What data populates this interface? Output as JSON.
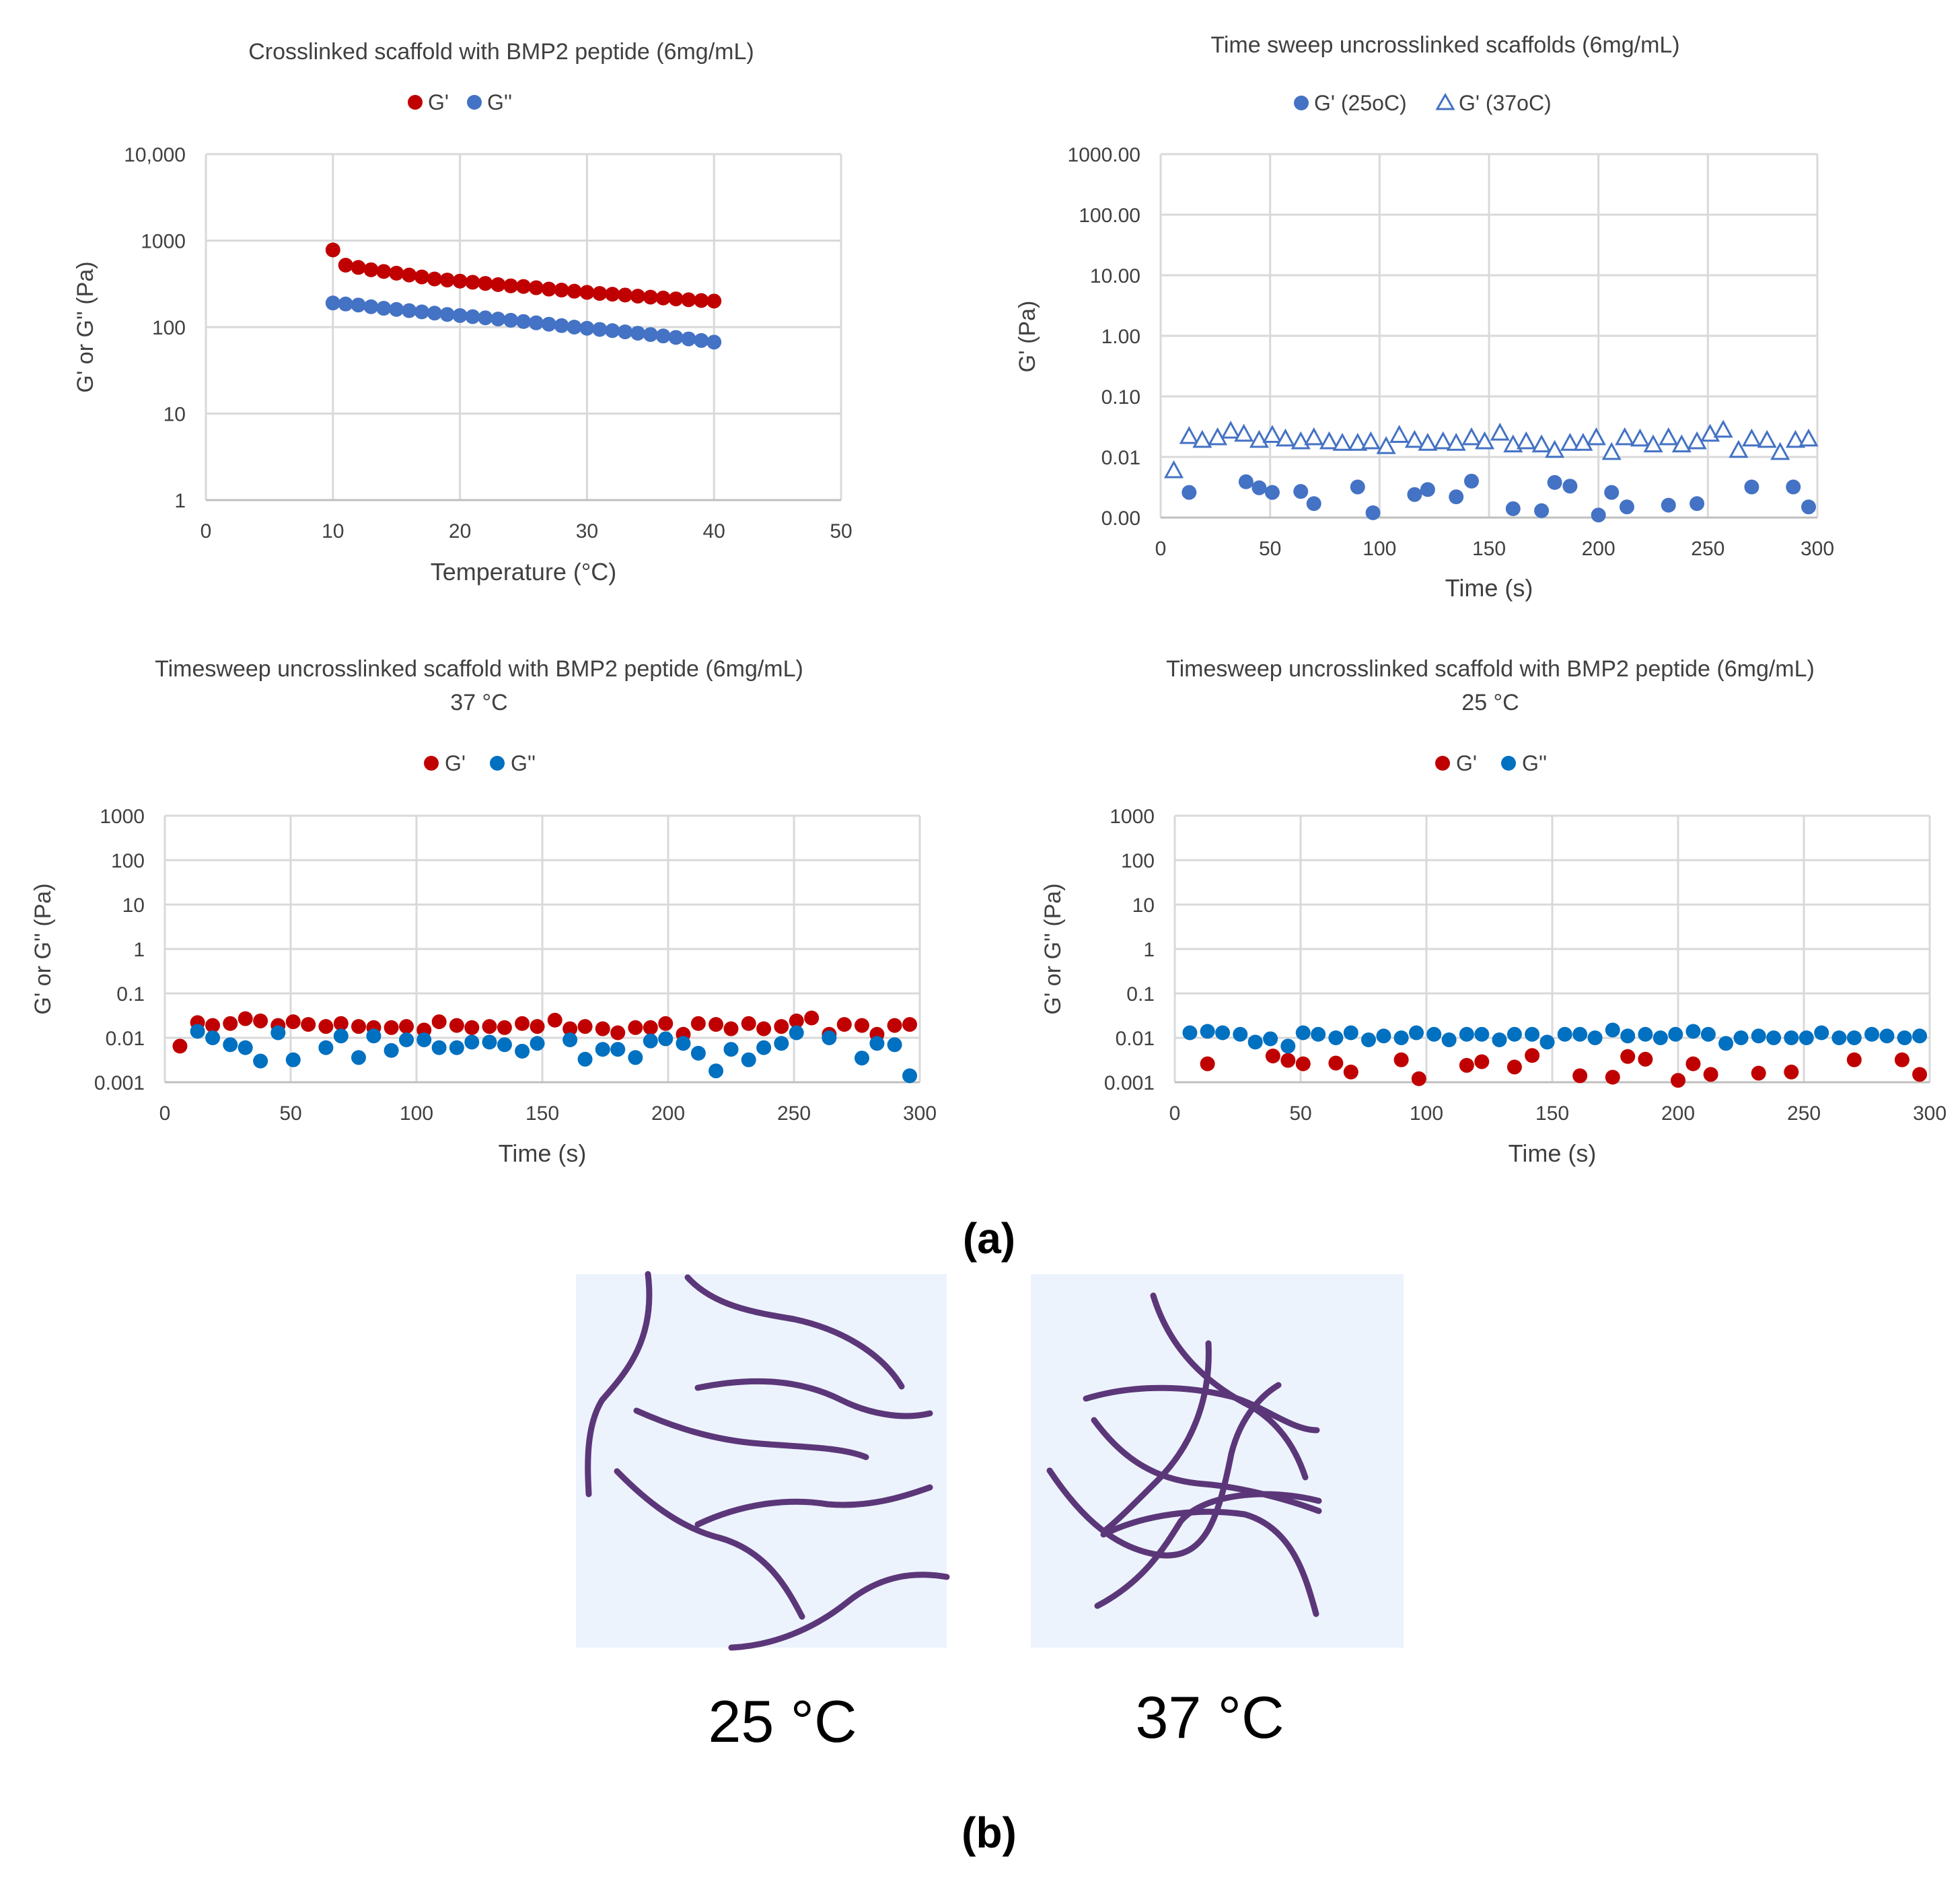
{
  "chart_data": [
    {
      "type": "scatter",
      "title": "Crosslinked scaffold with BMP2 peptide (6mg/mL)",
      "xlabel": "Temperature (°C)",
      "ylabel": "G' or G'' (Pa)",
      "xlim": [
        0,
        50
      ],
      "ylim": [
        1,
        10000
      ],
      "yscale": "log",
      "xticks": [
        0,
        10,
        20,
        30,
        40,
        50
      ],
      "xtick_labels": [
        "0",
        "10",
        "20",
        "30",
        "40",
        "50"
      ],
      "yticks": [
        1,
        10,
        100,
        1000,
        10000
      ],
      "ytick_labels": [
        "1",
        "10",
        "100",
        "1000",
        "10,000"
      ],
      "grid": true,
      "legend_position": "top-center",
      "series": [
        {
          "name": "G'",
          "marker": "filled-circle",
          "color": "#c00000",
          "x": [
            10,
            11,
            12,
            13,
            14,
            15,
            16,
            17,
            18,
            19,
            20,
            21,
            22,
            23,
            24,
            25,
            26,
            27,
            28,
            29,
            30,
            31,
            32,
            33,
            34,
            35,
            36,
            37,
            38,
            39,
            40
          ],
          "y": [
            780,
            520,
            490,
            460,
            440,
            420,
            400,
            380,
            360,
            350,
            340,
            330,
            320,
            310,
            300,
            295,
            285,
            275,
            268,
            260,
            252,
            245,
            240,
            235,
            228,
            222,
            217,
            212,
            207,
            203,
            200
          ]
        },
        {
          "name": "G''",
          "marker": "filled-circle",
          "color": "#4472c4",
          "x": [
            10,
            11,
            12,
            13,
            14,
            15,
            16,
            17,
            18,
            19,
            20,
            21,
            22,
            23,
            24,
            25,
            26,
            27,
            28,
            29,
            30,
            31,
            32,
            33,
            34,
            35,
            36,
            37,
            38,
            39,
            40
          ],
          "y": [
            190,
            185,
            180,
            172,
            165,
            160,
            155,
            150,
            145,
            140,
            136,
            132,
            128,
            124,
            120,
            116,
            112,
            108,
            104,
            100,
            97,
            94,
            91,
            88,
            85,
            82,
            79,
            76,
            73,
            70,
            67
          ]
        }
      ]
    },
    {
      "type": "scatter",
      "title": "Time sweep uncrosslinked scaffolds (6mg/mL)",
      "xlabel": "Time (s)",
      "ylabel": "G' (Pa)",
      "xlim": [
        0,
        300
      ],
      "ylim": [
        0.001,
        1000
      ],
      "yscale": "log",
      "xticks": [
        0,
        50,
        100,
        150,
        200,
        250,
        300
      ],
      "xtick_labels": [
        "0",
        "50",
        "100",
        "150",
        "200",
        "250",
        "300"
      ],
      "yticks": [
        0.001,
        0.01,
        0.1,
        1,
        10,
        100,
        1000
      ],
      "ytick_labels": [
        "0.00",
        "0.01",
        "0.10",
        "1.00",
        "10.00",
        "100.00",
        "1000.00"
      ],
      "grid": true,
      "legend_position": "top-center",
      "series": [
        {
          "name": "G' (25oC)",
          "marker": "filled-circle",
          "color": "#4472c4",
          "x": [
            13,
            39,
            45,
            51,
            64,
            70,
            90,
            97,
            116,
            122,
            135,
            142,
            161,
            174,
            180,
            187,
            200,
            206,
            213,
            232,
            245,
            270,
            289,
            296
          ],
          "y": [
            0.0026,
            0.0039,
            0.0031,
            0.0026,
            0.0027,
            0.0017,
            0.0032,
            0.0012,
            0.0024,
            0.0029,
            0.0022,
            0.004,
            0.0014,
            0.0013,
            0.0038,
            0.0033,
            0.0011,
            0.0026,
            0.0015,
            0.0016,
            0.0017,
            0.0032,
            0.0032,
            0.0015
          ]
        },
        {
          "name": "G' (37oC)",
          "marker": "open-triangle",
          "color": "#4472c4",
          "x": [
            6,
            13,
            19,
            26,
            32,
            38,
            45,
            51,
            57,
            64,
            70,
            77,
            83,
            90,
            96,
            103,
            109,
            116,
            122,
            129,
            135,
            142,
            148,
            155,
            161,
            167,
            174,
            180,
            187,
            193,
            199,
            206,
            212,
            219,
            225,
            232,
            238,
            245,
            251,
            257,
            264,
            270,
            277,
            283,
            290,
            296
          ],
          "y": [
            0.006,
            0.022,
            0.019,
            0.021,
            0.027,
            0.024,
            0.019,
            0.023,
            0.02,
            0.018,
            0.021,
            0.018,
            0.017,
            0.017,
            0.018,
            0.015,
            0.023,
            0.019,
            0.017,
            0.018,
            0.017,
            0.021,
            0.018,
            0.025,
            0.016,
            0.018,
            0.016,
            0.013,
            0.017,
            0.017,
            0.021,
            0.012,
            0.021,
            0.02,
            0.016,
            0.021,
            0.016,
            0.018,
            0.024,
            0.028,
            0.013,
            0.02,
            0.019,
            0.012,
            0.019,
            0.02
          ]
        }
      ]
    },
    {
      "type": "scatter",
      "title": "Timesweep uncrosslinked scaffold with BMP2 peptide (6mg/mL)",
      "subtitle": "37 °C",
      "xlabel": "Time (s)",
      "ylabel": "G' or G'' (Pa)",
      "xlim": [
        0,
        300
      ],
      "ylim": [
        0.001,
        1000
      ],
      "yscale": "log",
      "xticks": [
        0,
        50,
        100,
        150,
        200,
        250,
        300
      ],
      "xtick_labels": [
        "0",
        "50",
        "100",
        "150",
        "200",
        "250",
        "300"
      ],
      "yticks": [
        0.001,
        0.01,
        0.1,
        1,
        10,
        100,
        1000
      ],
      "ytick_labels": [
        "0.001",
        "0.01",
        "0.1",
        "1",
        "10",
        "100",
        "1000"
      ],
      "grid": true,
      "legend_position": "top-center",
      "series": [
        {
          "name": "G'",
          "marker": "filled-circle",
          "color": "#c00000",
          "x": [
            6,
            13,
            19,
            26,
            32,
            38,
            45,
            51,
            57,
            64,
            70,
            77,
            83,
            90,
            96,
            103,
            109,
            116,
            122,
            129,
            135,
            142,
            148,
            155,
            161,
            167,
            174,
            180,
            187,
            193,
            199,
            206,
            212,
            219,
            225,
            232,
            238,
            245,
            251,
            257,
            264,
            270,
            277,
            283,
            290,
            296
          ],
          "y": [
            0.0065,
            0.022,
            0.019,
            0.021,
            0.027,
            0.024,
            0.019,
            0.023,
            0.02,
            0.018,
            0.021,
            0.018,
            0.017,
            0.017,
            0.018,
            0.015,
            0.023,
            0.019,
            0.017,
            0.018,
            0.017,
            0.021,
            0.018,
            0.025,
            0.016,
            0.018,
            0.016,
            0.013,
            0.017,
            0.017,
            0.021,
            0.012,
            0.021,
            0.02,
            0.016,
            0.021,
            0.016,
            0.018,
            0.024,
            0.028,
            0.012,
            0.02,
            0.019,
            0.012,
            0.019,
            0.02
          ]
        },
        {
          "name": "G''",
          "marker": "filled-circle",
          "color": "#0070c0",
          "x": [
            13,
            19,
            26,
            32,
            38,
            45,
            51,
            64,
            70,
            77,
            83,
            90,
            96,
            103,
            109,
            116,
            122,
            129,
            135,
            142,
            148,
            161,
            167,
            174,
            180,
            187,
            193,
            199,
            206,
            212,
            219,
            225,
            232,
            238,
            245,
            251,
            264,
            277,
            283,
            290,
            296
          ],
          "y": [
            0.014,
            0.01,
            0.007,
            0.006,
            0.003,
            0.013,
            0.0032,
            0.006,
            0.011,
            0.0036,
            0.011,
            0.0052,
            0.009,
            0.009,
            0.006,
            0.006,
            0.008,
            0.008,
            0.007,
            0.005,
            0.0075,
            0.009,
            0.0033,
            0.0055,
            0.0055,
            0.0036,
            0.0085,
            0.0095,
            0.0075,
            0.0045,
            0.0018,
            0.0055,
            0.0032,
            0.006,
            0.0075,
            0.013,
            0.01,
            0.0035,
            0.0075,
            0.007,
            0.0014
          ]
        }
      ]
    },
    {
      "type": "scatter",
      "title": "Timesweep uncrosslinked scaffold with BMP2 peptide (6mg/mL)",
      "subtitle": "25 °C",
      "xlabel": "Time (s)",
      "ylabel": "G' or G'' (Pa)",
      "xlim": [
        0,
        300
      ],
      "ylim": [
        0.001,
        1000
      ],
      "yscale": "log",
      "xticks": [
        0,
        50,
        100,
        150,
        200,
        250,
        300
      ],
      "xtick_labels": [
        "0",
        "50",
        "100",
        "150",
        "200",
        "250",
        "300"
      ],
      "yticks": [
        0.001,
        0.01,
        0.1,
        1,
        10,
        100,
        1000
      ],
      "ytick_labels": [
        "0.001",
        "0.01",
        "0.1",
        "1",
        "10",
        "100",
        "1000"
      ],
      "grid": true,
      "legend_position": "top-center",
      "series": [
        {
          "name": "G'",
          "marker": "filled-circle",
          "color": "#c00000",
          "x": [
            13,
            39,
            45,
            51,
            64,
            70,
            90,
            97,
            116,
            122,
            135,
            142,
            161,
            174,
            180,
            187,
            200,
            206,
            213,
            232,
            245,
            270,
            289,
            296
          ],
          "y": [
            0.0026,
            0.0039,
            0.0031,
            0.0026,
            0.0027,
            0.0017,
            0.0032,
            0.0012,
            0.0024,
            0.0029,
            0.0022,
            0.004,
            0.0014,
            0.0013,
            0.0038,
            0.0033,
            0.0011,
            0.0026,
            0.0015,
            0.0016,
            0.0017,
            0.0032,
            0.0032,
            0.0015
          ]
        },
        {
          "name": "G''",
          "marker": "filled-circle",
          "color": "#0070c0",
          "x": [
            6,
            13,
            19,
            26,
            32,
            38,
            45,
            51,
            57,
            64,
            70,
            77,
            83,
            90,
            96,
            103,
            109,
            116,
            122,
            129,
            135,
            142,
            148,
            155,
            161,
            167,
            174,
            180,
            187,
            193,
            199,
            206,
            212,
            219,
            225,
            232,
            238,
            245,
            251,
            257,
            264,
            270,
            277,
            283,
            290,
            296
          ],
          "y": [
            0.013,
            0.014,
            0.013,
            0.012,
            0.008,
            0.0095,
            0.0065,
            0.013,
            0.012,
            0.01,
            0.013,
            0.009,
            0.011,
            0.01,
            0.013,
            0.012,
            0.009,
            0.012,
            0.012,
            0.009,
            0.012,
            0.012,
            0.008,
            0.012,
            0.012,
            0.01,
            0.015,
            0.011,
            0.012,
            0.01,
            0.012,
            0.014,
            0.012,
            0.0075,
            0.01,
            0.011,
            0.01,
            0.01,
            0.01,
            0.013,
            0.01,
            0.01,
            0.012,
            0.011,
            0.01,
            0.011
          ]
        }
      ]
    }
  ],
  "panel_labels": {
    "a": "(a)",
    "b": "(b)"
  },
  "illustration": {
    "left_label": "25 °C",
    "right_label": "37 °C",
    "background_color": "#edf3fc",
    "fiber_color": "#5b3779"
  }
}
